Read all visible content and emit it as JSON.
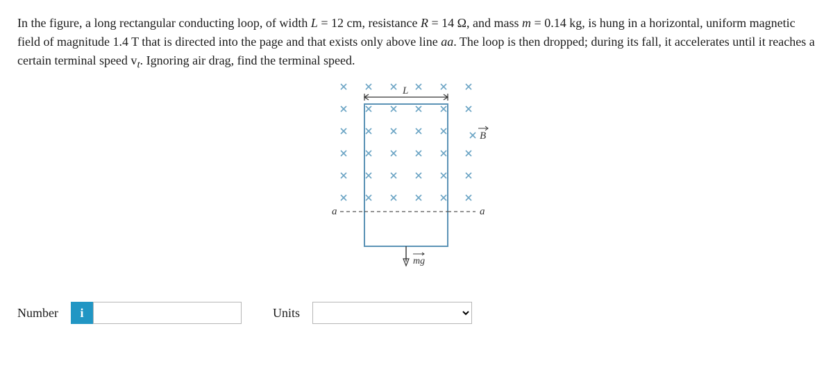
{
  "problem": {
    "text_parts": [
      "In the figure, a long rectangular conducting loop, of width ",
      " = 12 cm, resistance ",
      " = 14 Ω, and mass ",
      " = 0.14 kg, is hung in a horizontal, uniform magnetic field of magnitude 1.4 T that is directed into the page and that exists only above line ",
      ". The loop is then dropped; during its fall, it accelerates until it reaches a certain terminal speed v",
      ". Ignoring air drag, find the terminal speed."
    ],
    "vars": {
      "L": "L",
      "R": "R",
      "m": "m",
      "aa": "aa",
      "t": "t"
    }
  },
  "figure": {
    "width_label": "L",
    "field_label": "B",
    "line_label_left": "a",
    "line_label_right": "a",
    "force_label": "mg",
    "cross_color": "#6aa3c4",
    "loop_color": "#5a92b5",
    "rows": 6,
    "cols": 6,
    "arrow_color": "#333333"
  },
  "answer": {
    "number_label": "Number",
    "info_icon": "i",
    "units_label": "Units",
    "number_value": "",
    "units_value": ""
  }
}
